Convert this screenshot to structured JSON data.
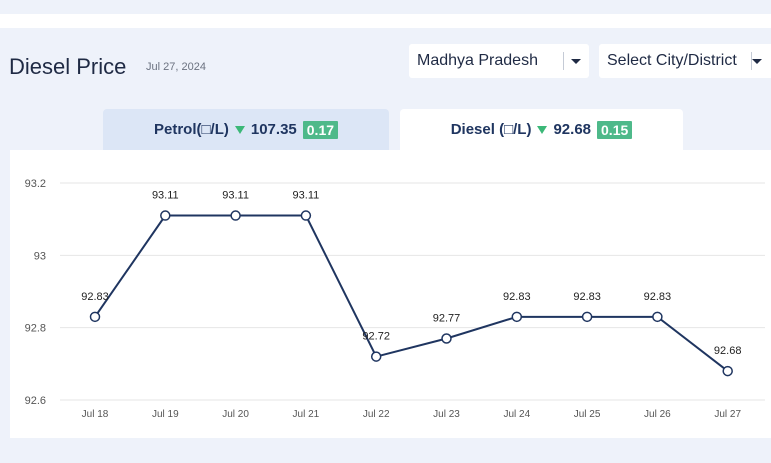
{
  "header": {
    "title": "Diesel Price",
    "date": "Jul 27, 2024"
  },
  "filters": {
    "state": "Madhya Pradesh",
    "city": "Select City/District"
  },
  "tabs": {
    "petrol": {
      "label": "Petrol(□/L)",
      "price": "107.35",
      "change": "0.17"
    },
    "diesel": {
      "label": "Diesel (□/L)",
      "price": "92.68",
      "change": "0.15"
    }
  },
  "colors": {
    "line": "#1f3560",
    "badge": "#4eb98a",
    "down_arrow": "#3cb878",
    "active_tab": "#ffffff",
    "inactive_tab": "#dce6f6"
  },
  "chart_data": {
    "type": "line",
    "categories": [
      "Jul 18",
      "Jul 19",
      "Jul 20",
      "Jul 21",
      "Jul 22",
      "Jul 23",
      "Jul 24",
      "Jul 25",
      "Jul 26",
      "Jul 27"
    ],
    "values": [
      92.83,
      93.11,
      93.11,
      93.11,
      92.72,
      92.77,
      92.83,
      92.83,
      92.83,
      92.68
    ],
    "value_labels": [
      "92.83",
      "93.11",
      "93.11",
      "93.11",
      "92.72",
      "92.77",
      "92.83",
      "92.83",
      "92.83",
      "92.68"
    ],
    "y_ticks": [
      "92.6",
      "92.8",
      "93",
      "93.2"
    ],
    "ylim": [
      92.6,
      93.2
    ],
    "grid": true
  }
}
